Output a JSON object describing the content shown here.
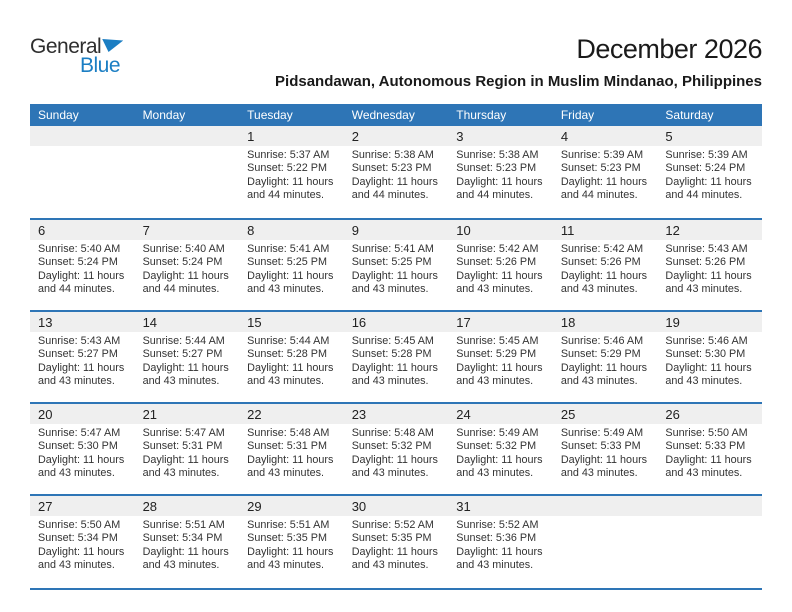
{
  "page": {
    "title": "December 2026",
    "location": "Pidsandawan, Autonomous Region in Muslim Mindanao, Philippines"
  },
  "logo": {
    "text_top": "General",
    "text_bottom": "Blue"
  },
  "colors": {
    "header_blue": "#2E75B6",
    "separator_blue": "#2E75B6",
    "band_gray": "#EFEFEF",
    "logo_blue": "#1B7EC3"
  },
  "calendar": {
    "weekdays": [
      "Sunday",
      "Monday",
      "Tuesday",
      "Wednesday",
      "Thursday",
      "Friday",
      "Saturday"
    ],
    "weeks": [
      {
        "days": [
          {
            "empty": true
          },
          {
            "empty": true
          },
          {
            "num": "1",
            "sunrise": "Sunrise: 5:37 AM",
            "sunset": "Sunset: 5:22 PM",
            "daylight_l1": "Daylight: 11 hours",
            "daylight_l2": "and 44 minutes."
          },
          {
            "num": "2",
            "sunrise": "Sunrise: 5:38 AM",
            "sunset": "Sunset: 5:23 PM",
            "daylight_l1": "Daylight: 11 hours",
            "daylight_l2": "and 44 minutes."
          },
          {
            "num": "3",
            "sunrise": "Sunrise: 5:38 AM",
            "sunset": "Sunset: 5:23 PM",
            "daylight_l1": "Daylight: 11 hours",
            "daylight_l2": "and 44 minutes."
          },
          {
            "num": "4",
            "sunrise": "Sunrise: 5:39 AM",
            "sunset": "Sunset: 5:23 PM",
            "daylight_l1": "Daylight: 11 hours",
            "daylight_l2": "and 44 minutes."
          },
          {
            "num": "5",
            "sunrise": "Sunrise: 5:39 AM",
            "sunset": "Sunset: 5:24 PM",
            "daylight_l1": "Daylight: 11 hours",
            "daylight_l2": "and 44 minutes."
          }
        ]
      },
      {
        "days": [
          {
            "num": "6",
            "sunrise": "Sunrise: 5:40 AM",
            "sunset": "Sunset: 5:24 PM",
            "daylight_l1": "Daylight: 11 hours",
            "daylight_l2": "and 44 minutes."
          },
          {
            "num": "7",
            "sunrise": "Sunrise: 5:40 AM",
            "sunset": "Sunset: 5:24 PM",
            "daylight_l1": "Daylight: 11 hours",
            "daylight_l2": "and 44 minutes."
          },
          {
            "num": "8",
            "sunrise": "Sunrise: 5:41 AM",
            "sunset": "Sunset: 5:25 PM",
            "daylight_l1": "Daylight: 11 hours",
            "daylight_l2": "and 43 minutes."
          },
          {
            "num": "9",
            "sunrise": "Sunrise: 5:41 AM",
            "sunset": "Sunset: 5:25 PM",
            "daylight_l1": "Daylight: 11 hours",
            "daylight_l2": "and 43 minutes."
          },
          {
            "num": "10",
            "sunrise": "Sunrise: 5:42 AM",
            "sunset": "Sunset: 5:26 PM",
            "daylight_l1": "Daylight: 11 hours",
            "daylight_l2": "and 43 minutes."
          },
          {
            "num": "11",
            "sunrise": "Sunrise: 5:42 AM",
            "sunset": "Sunset: 5:26 PM",
            "daylight_l1": "Daylight: 11 hours",
            "daylight_l2": "and 43 minutes."
          },
          {
            "num": "12",
            "sunrise": "Sunrise: 5:43 AM",
            "sunset": "Sunset: 5:26 PM",
            "daylight_l1": "Daylight: 11 hours",
            "daylight_l2": "and 43 minutes."
          }
        ]
      },
      {
        "days": [
          {
            "num": "13",
            "sunrise": "Sunrise: 5:43 AM",
            "sunset": "Sunset: 5:27 PM",
            "daylight_l1": "Daylight: 11 hours",
            "daylight_l2": "and 43 minutes."
          },
          {
            "num": "14",
            "sunrise": "Sunrise: 5:44 AM",
            "sunset": "Sunset: 5:27 PM",
            "daylight_l1": "Daylight: 11 hours",
            "daylight_l2": "and 43 minutes."
          },
          {
            "num": "15",
            "sunrise": "Sunrise: 5:44 AM",
            "sunset": "Sunset: 5:28 PM",
            "daylight_l1": "Daylight: 11 hours",
            "daylight_l2": "and 43 minutes."
          },
          {
            "num": "16",
            "sunrise": "Sunrise: 5:45 AM",
            "sunset": "Sunset: 5:28 PM",
            "daylight_l1": "Daylight: 11 hours",
            "daylight_l2": "and 43 minutes."
          },
          {
            "num": "17",
            "sunrise": "Sunrise: 5:45 AM",
            "sunset": "Sunset: 5:29 PM",
            "daylight_l1": "Daylight: 11 hours",
            "daylight_l2": "and 43 minutes."
          },
          {
            "num": "18",
            "sunrise": "Sunrise: 5:46 AM",
            "sunset": "Sunset: 5:29 PM",
            "daylight_l1": "Daylight: 11 hours",
            "daylight_l2": "and 43 minutes."
          },
          {
            "num": "19",
            "sunrise": "Sunrise: 5:46 AM",
            "sunset": "Sunset: 5:30 PM",
            "daylight_l1": "Daylight: 11 hours",
            "daylight_l2": "and 43 minutes."
          }
        ]
      },
      {
        "days": [
          {
            "num": "20",
            "sunrise": "Sunrise: 5:47 AM",
            "sunset": "Sunset: 5:30 PM",
            "daylight_l1": "Daylight: 11 hours",
            "daylight_l2": "and 43 minutes."
          },
          {
            "num": "21",
            "sunrise": "Sunrise: 5:47 AM",
            "sunset": "Sunset: 5:31 PM",
            "daylight_l1": "Daylight: 11 hours",
            "daylight_l2": "and 43 minutes."
          },
          {
            "num": "22",
            "sunrise": "Sunrise: 5:48 AM",
            "sunset": "Sunset: 5:31 PM",
            "daylight_l1": "Daylight: 11 hours",
            "daylight_l2": "and 43 minutes."
          },
          {
            "num": "23",
            "sunrise": "Sunrise: 5:48 AM",
            "sunset": "Sunset: 5:32 PM",
            "daylight_l1": "Daylight: 11 hours",
            "daylight_l2": "and 43 minutes."
          },
          {
            "num": "24",
            "sunrise": "Sunrise: 5:49 AM",
            "sunset": "Sunset: 5:32 PM",
            "daylight_l1": "Daylight: 11 hours",
            "daylight_l2": "and 43 minutes."
          },
          {
            "num": "25",
            "sunrise": "Sunrise: 5:49 AM",
            "sunset": "Sunset: 5:33 PM",
            "daylight_l1": "Daylight: 11 hours",
            "daylight_l2": "and 43 minutes."
          },
          {
            "num": "26",
            "sunrise": "Sunrise: 5:50 AM",
            "sunset": "Sunset: 5:33 PM",
            "daylight_l1": "Daylight: 11 hours",
            "daylight_l2": "and 43 minutes."
          }
        ]
      },
      {
        "days": [
          {
            "num": "27",
            "sunrise": "Sunrise: 5:50 AM",
            "sunset": "Sunset: 5:34 PM",
            "daylight_l1": "Daylight: 11 hours",
            "daylight_l2": "and 43 minutes."
          },
          {
            "num": "28",
            "sunrise": "Sunrise: 5:51 AM",
            "sunset": "Sunset: 5:34 PM",
            "daylight_l1": "Daylight: 11 hours",
            "daylight_l2": "and 43 minutes."
          },
          {
            "num": "29",
            "sunrise": "Sunrise: 5:51 AM",
            "sunset": "Sunset: 5:35 PM",
            "daylight_l1": "Daylight: 11 hours",
            "daylight_l2": "and 43 minutes."
          },
          {
            "num": "30",
            "sunrise": "Sunrise: 5:52 AM",
            "sunset": "Sunset: 5:35 PM",
            "daylight_l1": "Daylight: 11 hours",
            "daylight_l2": "and 43 minutes."
          },
          {
            "num": "31",
            "sunrise": "Sunrise: 5:52 AM",
            "sunset": "Sunset: 5:36 PM",
            "daylight_l1": "Daylight: 11 hours",
            "daylight_l2": "and 43 minutes."
          },
          {
            "empty": true
          },
          {
            "empty": true
          }
        ]
      }
    ]
  }
}
